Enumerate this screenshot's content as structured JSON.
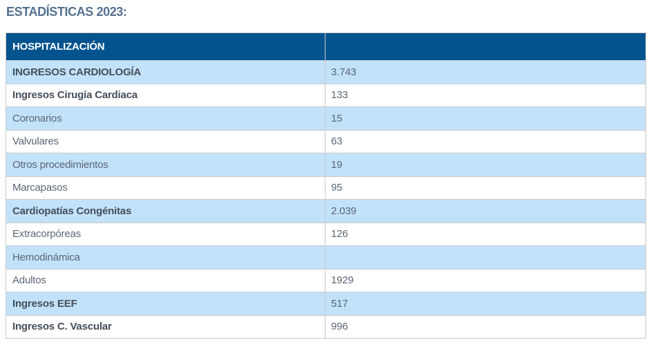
{
  "page": {
    "title": "ESTADÍSTICAS 2023:"
  },
  "table": {
    "header": {
      "label": "HOSPITALIZACIÓN",
      "value": ""
    },
    "rows": [
      {
        "label": "INGRESOS CARDIOLOGÍA",
        "value": "3.743",
        "bold": true
      },
      {
        "label": "Ingresos Cirugía Cardiaca",
        "value": "133",
        "bold": true
      },
      {
        "label": "Coronarios",
        "value": "15",
        "bold": false
      },
      {
        "label": "Valvulares",
        "value": "63",
        "bold": false
      },
      {
        "label": "Otros procedimientos",
        "value": "19",
        "bold": false
      },
      {
        "label": "Marcapasos",
        "value": "95",
        "bold": false
      },
      {
        "label": "Cardiopatías Congénitas",
        "value": "2.039",
        "bold": true
      },
      {
        "label": "Extracorpóreas",
        "value": "126",
        "bold": false
      },
      {
        "label": "Hemodinámica",
        "value": "",
        "bold": false
      },
      {
        "label": "Adultos",
        "value": "1929",
        "bold": false
      },
      {
        "label": "Ingresos EEF",
        "value": "517",
        "bold": true
      },
      {
        "label": "Ingresos C. Vascular",
        "value": "996",
        "bold": true
      }
    ],
    "colors": {
      "header_bg": "#02538E",
      "header_text": "#FFFFFF",
      "row_alt_bg": "#C2E2FA",
      "row_bg": "#FFFFFF",
      "border": "#C9C9C9",
      "label_text": "#5A6673",
      "bold_label_text": "#454F59",
      "title_text": "#54718F"
    }
  }
}
